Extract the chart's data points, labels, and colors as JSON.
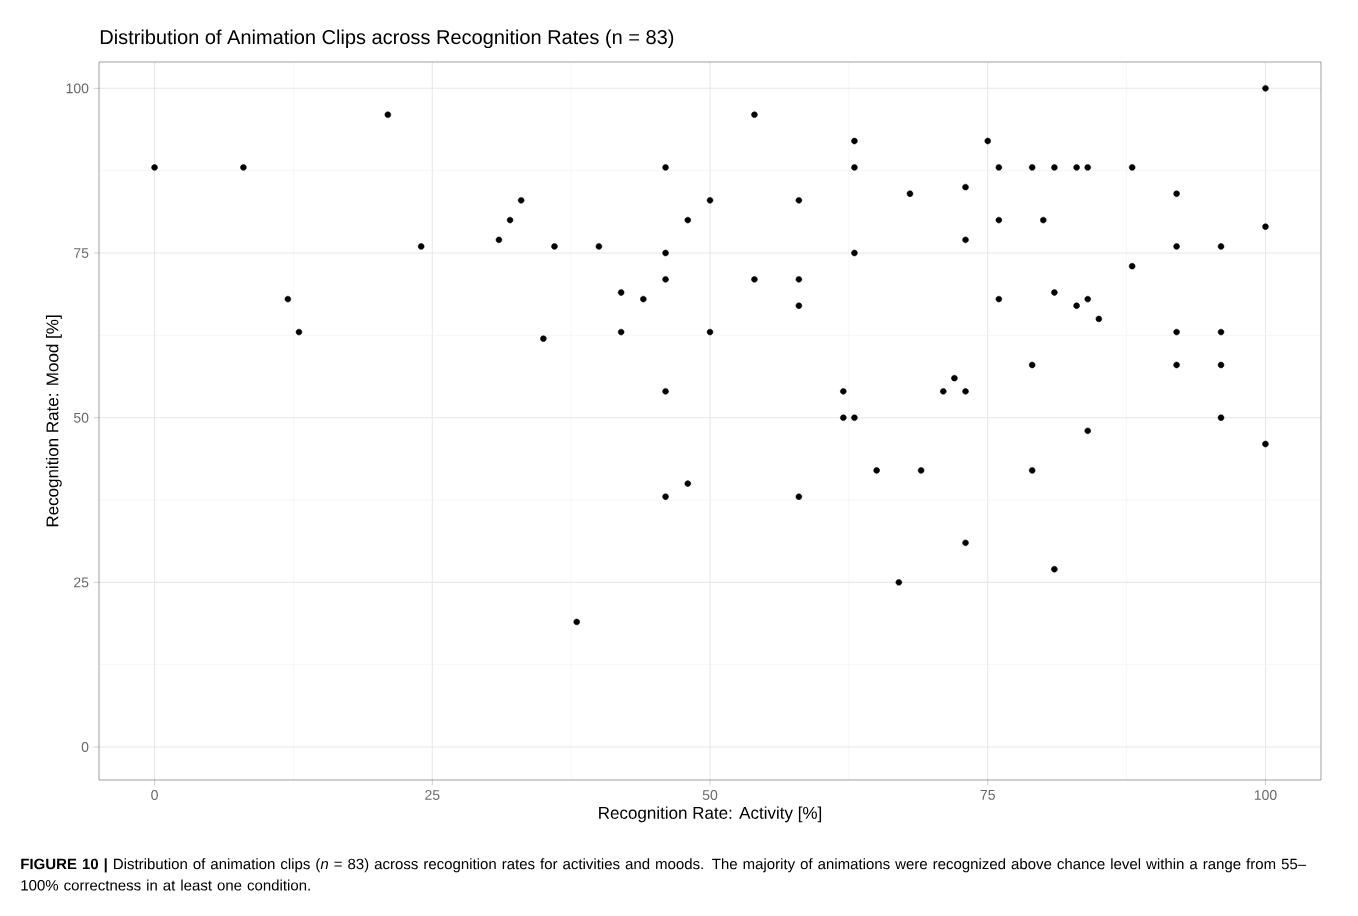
{
  "chart_data": {
    "type": "scatter",
    "title": "Distribution of Animation Clips across Recognition Rates (n = 83)",
    "xlabel": "Recognition Rate: Activity [%]",
    "ylabel": "Recognition Rate: Mood [%]",
    "x": [
      0,
      8,
      12,
      13,
      21,
      24,
      31,
      32,
      33,
      35,
      36,
      38,
      40,
      42,
      42,
      44,
      46,
      46,
      46,
      46,
      46,
      48,
      48,
      50,
      50,
      54,
      54,
      58,
      58,
      58,
      58,
      62,
      62,
      63,
      63,
      63,
      63,
      65,
      67,
      68,
      69,
      71,
      72,
      73,
      73,
      73,
      73,
      75,
      76,
      76,
      76,
      79,
      79,
      79,
      80,
      81,
      81,
      81,
      83,
      83,
      84,
      84,
      84,
      85,
      88,
      88,
      92,
      92,
      92,
      92,
      96,
      96,
      96,
      96,
      100,
      100,
      100
    ],
    "values": [
      88,
      88,
      68,
      63,
      96,
      76,
      77,
      80,
      83,
      62,
      76,
      19,
      76,
      69,
      63,
      68,
      88,
      75,
      71,
      54,
      38,
      80,
      40,
      83,
      63,
      96,
      71,
      83,
      71,
      67,
      38,
      54,
      50,
      92,
      88,
      75,
      50,
      42,
      25,
      84,
      42,
      54,
      56,
      85,
      77,
      54,
      31,
      92,
      88,
      80,
      68,
      88,
      58,
      42,
      80,
      88,
      69,
      27,
      88,
      67,
      88,
      68,
      48,
      65,
      88,
      73,
      84,
      76,
      63,
      58,
      76,
      63,
      58,
      50,
      100,
      79,
      46
    ],
    "color": "#000000",
    "marker": "circle",
    "xlim": [
      -5,
      105
    ],
    "ylim": [
      -5,
      104
    ],
    "xticks": [
      0,
      25,
      50,
      75,
      100
    ],
    "yticks": [
      0,
      25,
      50,
      75,
      100
    ],
    "grid": true,
    "annotations": [
      "**FIGURE 10 |** Distribution of animation clips (*n* = 83) across recognition rates for activities and moods. The majority of animations were recognized above chance level within a range from 55–100% correctness in at least one condition."
    ]
  }
}
